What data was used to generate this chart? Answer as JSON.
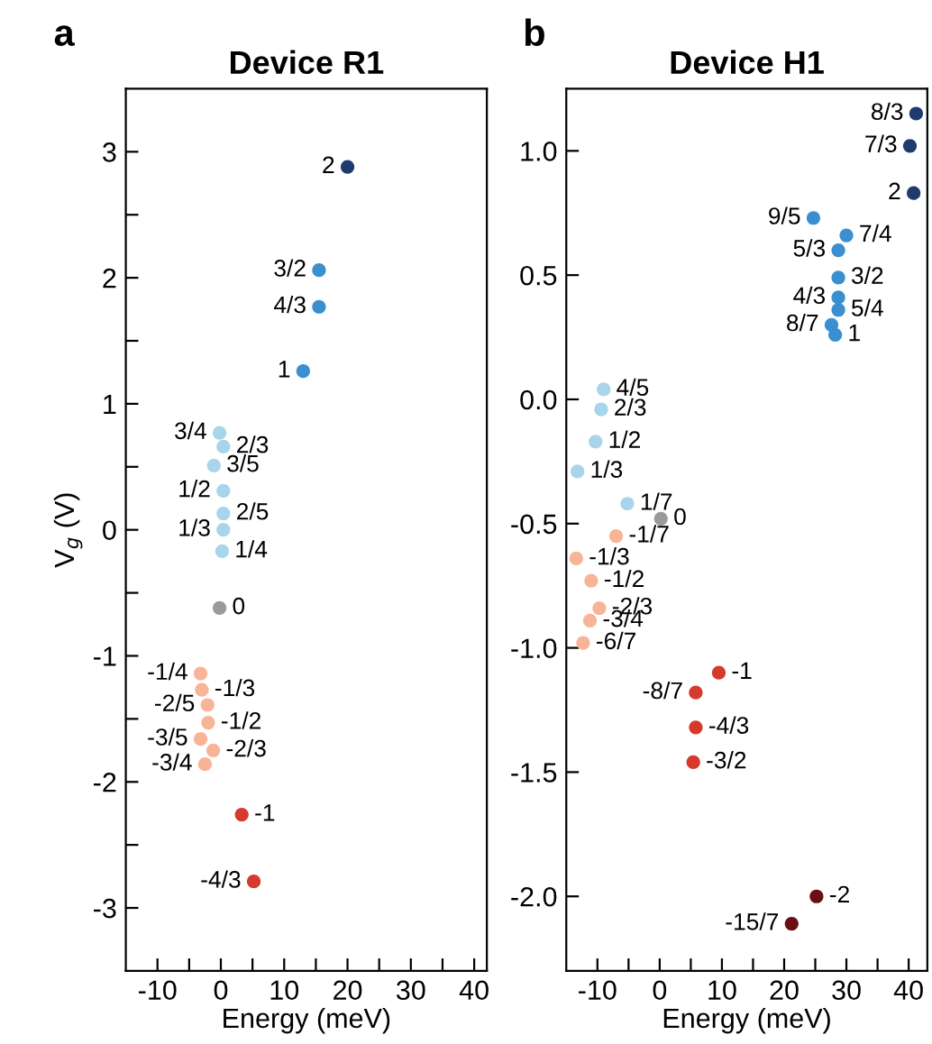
{
  "chart_data": [
    {
      "type": "scatter",
      "title": "Device R1",
      "xlabel": "Energy (meV)",
      "ylabel": "V$_{g}$ (V)",
      "annotations": [
        "a",
        {
          "text": "2",
          "x": 20,
          "y": 2.88
        },
        {
          "text": "3/2",
          "x": 15.5,
          "y": 2.06
        },
        {
          "text": "4/3",
          "x": 15.5,
          "y": 1.77
        },
        {
          "text": "1",
          "x": 13,
          "y": 1.26
        },
        {
          "text": "3/4",
          "x": -0.2,
          "y": 0.77
        },
        {
          "text": "2/3",
          "x": 0.4,
          "y": 0.66
        },
        {
          "text": "3/5",
          "x": -1.1,
          "y": 0.51
        },
        {
          "text": "1/2",
          "x": 0.4,
          "y": 0.31
        },
        {
          "text": "2/5",
          "x": 0.4,
          "y": 0.13
        },
        {
          "text": "1/3",
          "x": 0.4,
          "y": 0.0
        },
        {
          "text": "1/4",
          "x": 0.2,
          "y": -0.17
        },
        {
          "text": "0",
          "x": -0.2,
          "y": -0.62
        },
        {
          "text": "-1/4",
          "x": -3.2,
          "y": -1.14
        },
        {
          "text": "-1/3",
          "x": -3,
          "y": -1.27
        },
        {
          "text": "-2/5",
          "x": -2.1,
          "y": -1.39
        },
        {
          "text": "-1/2",
          "x": -2,
          "y": -1.53
        },
        {
          "text": "-3/5",
          "x": -3.2,
          "y": -1.66
        },
        {
          "text": "-2/3",
          "x": -1.2,
          "y": -1.75
        },
        {
          "text": "-3/4",
          "x": -2.5,
          "y": -1.86
        },
        {
          "text": "-1",
          "x": 3.3,
          "y": -2.26
        },
        {
          "text": "-4/3",
          "x": 5.2,
          "y": -2.79
        }
      ],
      "xlim": [
        -15,
        42
      ],
      "ylim": [
        -3.5,
        3.5
      ],
      "xticks": [
        -10,
        {
          "value": -5,
          "label": null
        },
        0,
        {
          "value": 5,
          "label": null
        },
        10,
        {
          "value": 15,
          "label": null
        },
        20,
        {
          "value": 25,
          "label": null
        },
        30,
        {
          "value": 35,
          "label": null
        },
        40
      ],
      "yticks": [
        -3,
        {
          "value": -2.5,
          "label": null
        },
        -2,
        {
          "value": -1.5,
          "label": null
        },
        -1,
        {
          "value": -0.5,
          "label": null
        },
        0,
        {
          "value": 0.5,
          "label": null
        },
        1,
        {
          "value": 1.5,
          "label": null
        },
        2,
        {
          "value": 2.5,
          "label": null
        },
        3
      ],
      "grid": false,
      "marker": "circle",
      "series": [
        {
          "color": "#1f3a6e",
          "x": [
            20
          ],
          "values": [
            2.88
          ]
        },
        {
          "color": "#3a8fd0",
          "x": [
            15.5,
            15.5,
            13
          ],
          "values": [
            2.06,
            1.77,
            1.26
          ]
        },
        {
          "color": "#a8d4ec",
          "x": [
            -0.2,
            0.4,
            -1.1,
            0.4,
            0.4,
            0.4,
            0.2
          ],
          "values": [
            0.77,
            0.66,
            0.51,
            0.31,
            0.13,
            0.0,
            -0.17
          ]
        },
        {
          "color": "#9a9a9a",
          "x": [
            -0.2
          ],
          "values": [
            -0.62
          ]
        },
        {
          "color": "#f8b497",
          "x": [
            -3.2,
            -3,
            -2.1,
            -2,
            -3.2,
            -1.2,
            -2.5
          ],
          "values": [
            -1.14,
            -1.27,
            -1.39,
            -1.53,
            -1.66,
            -1.75,
            -1.86
          ]
        },
        {
          "color": "#d63a2c",
          "x": [
            3.3,
            5.2
          ],
          "values": [
            -2.26,
            -2.79
          ]
        }
      ]
    },
    {
      "type": "scatter",
      "title": "Device H1",
      "xlabel": "Energy (meV)",
      "annotations": [
        "b",
        {
          "text": "8/3",
          "x": 41.2,
          "y": 1.15
        },
        {
          "text": "7/3",
          "x": 40.2,
          "y": 1.02
        },
        {
          "text": "2",
          "x": 40.8,
          "y": 0.83
        },
        {
          "text": "9/5",
          "x": 24.7,
          "y": 0.73
        },
        {
          "text": "7/4",
          "x": 30,
          "y": 0.66
        },
        {
          "text": "5/3",
          "x": 28.7,
          "y": 0.6
        },
        {
          "text": "3/2",
          "x": 28.7,
          "y": 0.49
        },
        {
          "text": "4/3",
          "x": 28.7,
          "y": 0.41
        },
        {
          "text": "5/4",
          "x": 28.7,
          "y": 0.36
        },
        {
          "text": "8/7",
          "x": 27.6,
          "y": 0.3
        },
        {
          "text": "1",
          "x": 28.2,
          "y": 0.26
        },
        {
          "text": "4/5",
          "x": -9,
          "y": 0.04
        },
        {
          "text": "2/3",
          "x": -9.4,
          "y": -0.04
        },
        {
          "text": "1/2",
          "x": -10.3,
          "y": -0.17
        },
        {
          "text": "1/3",
          "x": -13.2,
          "y": -0.29
        },
        {
          "text": "1/7",
          "x": -5.2,
          "y": -0.42
        },
        {
          "text": "0",
          "x": 0.2,
          "y": -0.48
        },
        {
          "text": "-1/7",
          "x": -7,
          "y": -0.55
        },
        {
          "text": "-1/3",
          "x": -13.4,
          "y": -0.64
        },
        {
          "text": "-1/2",
          "x": -11,
          "y": -0.73
        },
        {
          "text": "-2/3",
          "x": -9.7,
          "y": -0.84
        },
        {
          "text": "-3/4",
          "x": -11.2,
          "y": -0.89
        },
        {
          "text": "-6/7",
          "x": -12.3,
          "y": -0.98
        },
        {
          "text": "-1",
          "x": 9.5,
          "y": -1.1
        },
        {
          "text": "-8/7",
          "x": 5.8,
          "y": -1.18
        },
        {
          "text": "-4/3",
          "x": 5.8,
          "y": -1.32
        },
        {
          "text": "-3/2",
          "x": 5.4,
          "y": -1.46
        },
        {
          "text": "-2",
          "x": 25.2,
          "y": -2.0
        },
        {
          "text": "-15/7",
          "x": 21.2,
          "y": -2.11
        }
      ],
      "xlim": [
        -15,
        43
      ],
      "ylim": [
        -2.3,
        1.25
      ],
      "xticks": [
        -10,
        {
          "value": -5,
          "label": null
        },
        0,
        {
          "value": 5,
          "label": null
        },
        10,
        {
          "value": 15,
          "label": null
        },
        20,
        {
          "value": 25,
          "label": null
        },
        30,
        {
          "value": 35,
          "label": null
        },
        40
      ],
      "yticks": [
        {
          "value": -2.0,
          "label": "-2.0"
        },
        -1.5,
        {
          "value": -1.0,
          "label": "-1.0"
        },
        -0.5,
        {
          "value": 0.0,
          "label": "0.0"
        },
        0.5,
        {
          "value": 1.0,
          "label": "1.0"
        }
      ],
      "grid": false,
      "marker": "circle",
      "series": [
        {
          "color": "#1f3a6e",
          "x": [
            41.2,
            40.2,
            40.8
          ],
          "values": [
            1.15,
            1.02,
            0.83
          ]
        },
        {
          "color": "#3a8fd0",
          "x": [
            24.7,
            30,
            28.7,
            28.7,
            28.7,
            28.7,
            27.6,
            28.2
          ],
          "values": [
            0.73,
            0.66,
            0.6,
            0.49,
            0.41,
            0.36,
            0.3,
            0.26
          ]
        },
        {
          "color": "#a8d4ec",
          "x": [
            -9,
            -9.4,
            -10.3,
            -13.2,
            -5.2
          ],
          "values": [
            0.04,
            -0.04,
            -0.17,
            -0.29,
            -0.42
          ]
        },
        {
          "color": "#9a9a9a",
          "x": [
            0.2
          ],
          "values": [
            -0.48
          ]
        },
        {
          "color": "#f8b497",
          "x": [
            -7,
            -13.4,
            -11,
            -9.7,
            -11.2,
            -12.3
          ],
          "values": [
            -0.55,
            -0.64,
            -0.73,
            -0.84,
            -0.89,
            -0.98
          ]
        },
        {
          "color": "#d63a2c",
          "x": [
            9.5,
            5.8,
            5.8,
            5.4
          ],
          "values": [
            -1.1,
            -1.18,
            -1.32,
            -1.46
          ]
        },
        {
          "color": "#6b0e14",
          "x": [
            25.2,
            21.2
          ],
          "values": [
            -2.0,
            -2.11
          ]
        }
      ]
    }
  ]
}
